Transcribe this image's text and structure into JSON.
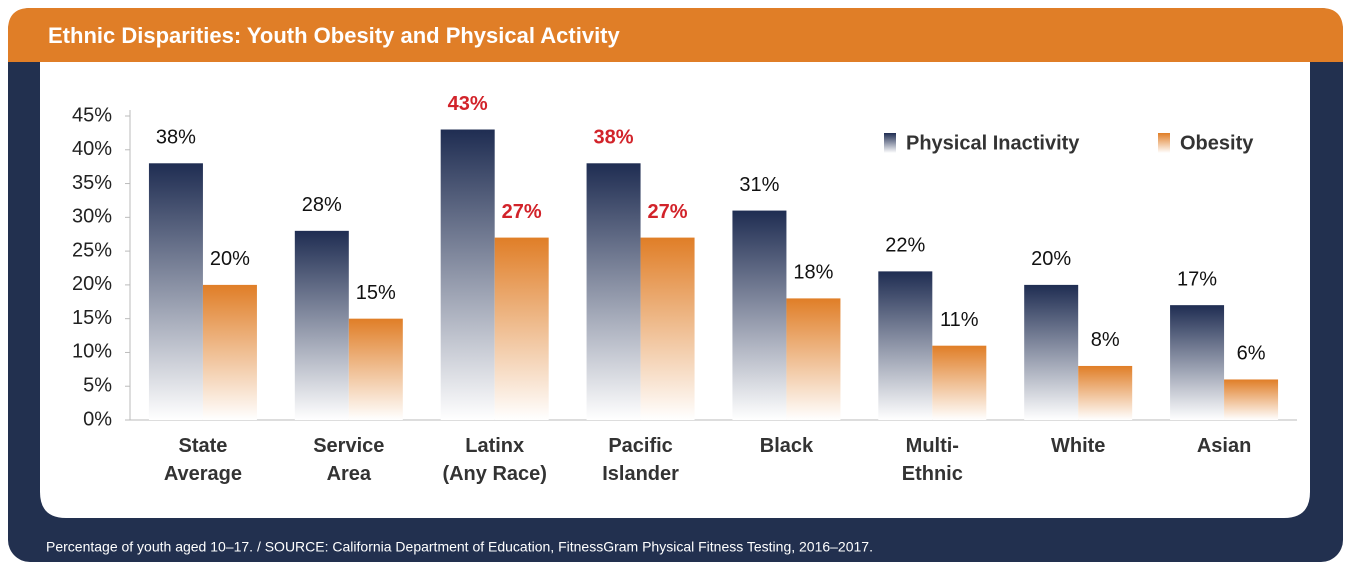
{
  "chart_data": {
    "type": "bar",
    "title": "Ethnic Disparities: Youth Obesity and Physical Activity",
    "footnote": "Percentage of youth aged 10–17. / SOURCE: California Department of Education, FitnessGram Physical Fitness Testing, 2016–2017.",
    "categories": [
      [
        "State",
        "Average"
      ],
      [
        "Service",
        "Area"
      ],
      [
        "Latinx",
        "(Any Race)"
      ],
      [
        "Pacific",
        "Islander"
      ],
      [
        "Black"
      ],
      [
        "Multi-",
        "Ethnic"
      ],
      [
        "White"
      ],
      [
        "Asian"
      ]
    ],
    "series": [
      {
        "name": "Physical Inactivity",
        "color": "#1f2d52",
        "values": [
          38,
          28,
          43,
          38,
          31,
          22,
          20,
          17
        ],
        "value_labels": [
          "38%",
          "28%",
          "43%",
          "38%",
          "31%",
          "22%",
          "20%",
          "17%"
        ],
        "label_colors": [
          "#111111",
          "#111111",
          "#d2232a",
          "#d2232a",
          "#111111",
          "#111111",
          "#111111",
          "#111111"
        ]
      },
      {
        "name": "Obesity",
        "color": "#e07e27",
        "values": [
          20,
          15,
          27,
          27,
          18,
          11,
          8,
          6
        ],
        "value_labels": [
          "20%",
          "15%",
          "27%",
          "27%",
          "18%",
          "11%",
          "8%",
          "6%"
        ],
        "label_colors": [
          "#111111",
          "#111111",
          "#d2232a",
          "#d2232a",
          "#111111",
          "#111111",
          "#111111",
          "#111111"
        ]
      }
    ],
    "ylim": [
      0,
      45
    ],
    "yticks": [
      {
        "value": 0,
        "label": "0%"
      },
      {
        "value": 5,
        "label": "5%"
      },
      {
        "value": 10,
        "label": "10%"
      },
      {
        "value": 15,
        "label": "15%"
      },
      {
        "value": 20,
        "label": "20%"
      },
      {
        "value": 25,
        "label": "25%"
      },
      {
        "value": 30,
        "label": "30%"
      },
      {
        "value": 35,
        "label": "35%"
      },
      {
        "value": 40,
        "label": "40%"
      },
      {
        "value": 45,
        "label": "45%"
      }
    ],
    "legend": "top-right",
    "grid": false
  }
}
